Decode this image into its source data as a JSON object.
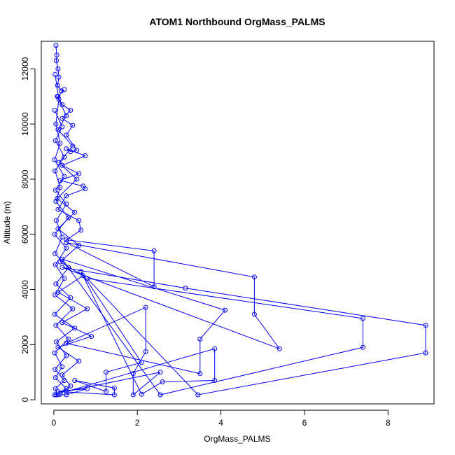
{
  "chart_data": {
    "type": "line",
    "title": "ATOM1 Northbound OrgMass_PALMS",
    "xlabel": "OrgMass_PALMS",
    "ylabel": "Altitude (m)",
    "xlim": [
      -0.3,
      9.1
    ],
    "ylim": [
      -150,
      13000
    ],
    "x_ticks": [
      0,
      2,
      4,
      6,
      8
    ],
    "y_ticks": [
      0,
      2000,
      4000,
      6000,
      8000,
      10000,
      12000
    ],
    "x_tick_labels": [
      "0",
      "2",
      "4",
      "6",
      "8"
    ],
    "y_tick_labels": [
      "0",
      "2000",
      "4000",
      "6000",
      "8000",
      "10000",
      "12000"
    ],
    "series_color": "#0000ff",
    "grid": false,
    "series": [
      {
        "points": [
          [
            0.05,
            12850
          ],
          [
            0.07,
            12500
          ],
          [
            0.06,
            12300
          ],
          [
            0.1,
            12000
          ],
          [
            0.12,
            11700
          ],
          [
            0.09,
            11400
          ],
          [
            0.18,
            11200
          ],
          [
            0.25,
            11250
          ],
          [
            0.1,
            11000
          ],
          [
            0.2,
            10700
          ],
          [
            0.4,
            10500
          ],
          [
            0.2,
            10200
          ],
          [
            0.45,
            9950
          ],
          [
            0.3,
            9600
          ],
          [
            0.55,
            9050
          ],
          [
            0.4,
            9000
          ],
          [
            0.3,
            9100
          ],
          [
            0.75,
            8850
          ],
          [
            0.2,
            8500
          ],
          [
            0.6,
            8200
          ],
          [
            0.15,
            7950
          ],
          [
            0.7,
            7750
          ],
          [
            0.75,
            7650
          ],
          [
            0.3,
            7400
          ],
          [
            0.1,
            6900
          ],
          [
            0.6,
            6500
          ],
          [
            0.65,
            6150
          ],
          [
            0.3,
            5800
          ],
          [
            2.4,
            5400
          ],
          [
            2.4,
            4100
          ],
          [
            0.3,
            5700
          ],
          [
            4.8,
            4450
          ],
          [
            4.8,
            3100
          ],
          [
            5.4,
            1850
          ],
          [
            0.2,
            4800
          ],
          [
            3.15,
            4050
          ],
          [
            8.9,
            2700
          ],
          [
            8.9,
            1700
          ],
          [
            3.45,
            180
          ],
          [
            0.8,
            4400
          ],
          [
            7.4,
            2950
          ],
          [
            7.4,
            1900
          ],
          [
            2.55,
            180
          ],
          [
            0.2,
            5100
          ],
          [
            4.1,
            3250
          ],
          [
            3.5,
            2200
          ],
          [
            3.5,
            950
          ],
          [
            0.3,
            2050
          ],
          [
            2.2,
            3350
          ],
          [
            2.2,
            1750
          ],
          [
            1.9,
            950
          ],
          [
            1.9,
            180
          ],
          [
            2.55,
            1000
          ],
          [
            0.3,
            300
          ],
          [
            3.85,
            1850
          ],
          [
            3.85,
            700
          ],
          [
            2.6,
            650
          ],
          [
            2.1,
            200
          ],
          [
            0.65,
            4650
          ],
          [
            2.1,
            1350
          ],
          [
            1.25,
            1000
          ],
          [
            1.25,
            300
          ],
          [
            0.5,
            700
          ],
          [
            1.45,
            430
          ],
          [
            1.45,
            180
          ],
          [
            0.1,
            300
          ],
          [
            0.8,
            400
          ],
          [
            0.3,
            180
          ],
          [
            0.05,
            180
          ]
        ]
      },
      {
        "points": [
          [
            0.03,
            11800
          ],
          [
            0.12,
            10900
          ],
          [
            0.05,
            10000
          ],
          [
            0.15,
            9300
          ],
          [
            0.02,
            8700
          ],
          [
            0.25,
            8100
          ],
          [
            0.04,
            7600
          ],
          [
            0.3,
            7100
          ],
          [
            0.06,
            6500
          ],
          [
            0.2,
            5900
          ],
          [
            0.03,
            5300
          ],
          [
            0.35,
            4800
          ],
          [
            0.05,
            4200
          ],
          [
            0.4,
            3700
          ],
          [
            0.02,
            3100
          ],
          [
            0.5,
            2600
          ],
          [
            0.06,
            2100
          ],
          [
            0.3,
            1600
          ],
          [
            0.03,
            1100
          ],
          [
            0.25,
            700
          ],
          [
            0.04,
            400
          ],
          [
            0.1,
            180
          ]
        ]
      },
      {
        "points": [
          [
            0.08,
            11000
          ],
          [
            0.3,
            10300
          ],
          [
            0.1,
            9800
          ],
          [
            0.45,
            9200
          ],
          [
            0.12,
            8600
          ],
          [
            0.55,
            8000
          ],
          [
            0.08,
            7300
          ],
          [
            0.5,
            6800
          ],
          [
            0.1,
            6200
          ],
          [
            0.6,
            5600
          ],
          [
            0.15,
            5000
          ],
          [
            0.7,
            4500
          ],
          [
            0.1,
            3900
          ],
          [
            0.8,
            3300
          ],
          [
            0.2,
            2800
          ],
          [
            0.9,
            2300
          ],
          [
            0.1,
            1900
          ],
          [
            0.6,
            1400
          ],
          [
            0.2,
            900
          ],
          [
            0.4,
            500
          ],
          [
            0.15,
            200
          ]
        ]
      },
      {
        "points": [
          [
            0.02,
            10500
          ],
          [
            0.2,
            9900
          ],
          [
            0.04,
            9400
          ],
          [
            0.25,
            8800
          ],
          [
            0.03,
            8300
          ],
          [
            0.15,
            7700
          ],
          [
            0.05,
            7200
          ],
          [
            0.35,
            6600
          ],
          [
            0.02,
            6000
          ],
          [
            0.3,
            5500
          ],
          [
            0.04,
            4900
          ],
          [
            0.25,
            4400
          ],
          [
            0.03,
            3800
          ],
          [
            0.45,
            3300
          ],
          [
            0.05,
            2700
          ],
          [
            0.35,
            2200
          ],
          [
            0.02,
            1700
          ],
          [
            0.2,
            1200
          ],
          [
            0.04,
            800
          ],
          [
            0.3,
            400
          ],
          [
            0.02,
            180
          ]
        ]
      }
    ]
  }
}
